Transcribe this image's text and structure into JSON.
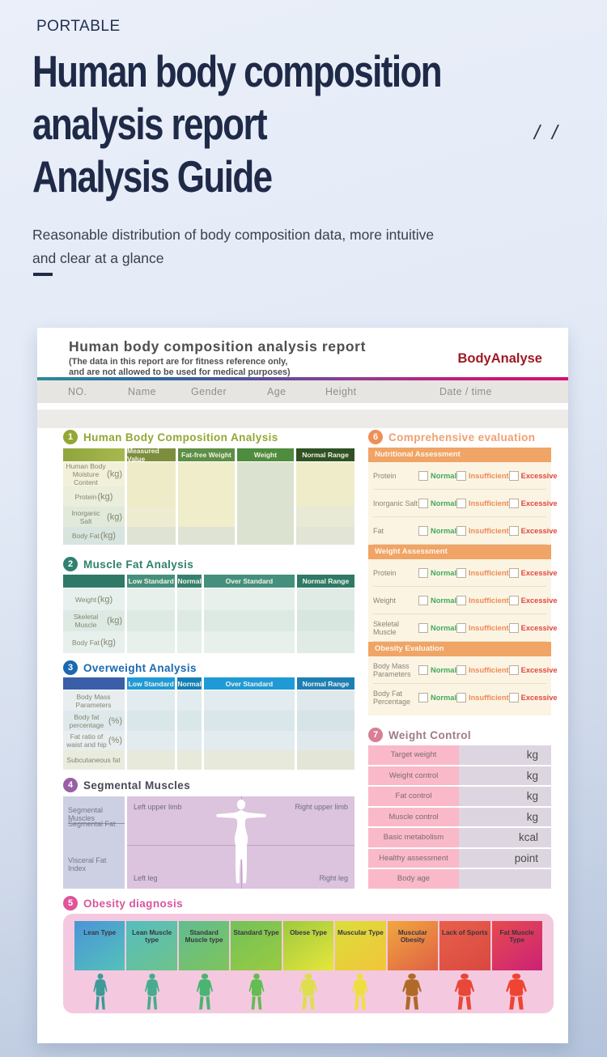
{
  "page": {
    "kicker": "PORTABLE",
    "title_lines": [
      "Human body composition",
      "analysis report",
      "Analysis Guide"
    ],
    "slashes": "/ /",
    "subtitle_line1": "Reasonable distribution of body composition data, more intuitive",
    "subtitle_line2": "and clear at a glance"
  },
  "report": {
    "title": "Human body composition analysis report",
    "disclaimer_line1": "(The data in this report are for fitness reference only,",
    "disclaimer_line2": "and are not allowed to be used for medical purposes)",
    "brand": "BodyAnalyse",
    "info_columns": [
      "NO.",
      "Name",
      "Gender",
      "Age",
      "Height",
      "Date / time"
    ],
    "sections": {
      "composition": {
        "number": "1",
        "title": "Human Body Composition Analysis",
        "columns": [
          "Measured Value",
          "Fat-free Weight",
          "Weight",
          "Normal Range"
        ],
        "rows": [
          {
            "label": "Human Body Moisture Content",
            "unit": "(kg)"
          },
          {
            "label": "Protein",
            "unit": "(kg)"
          },
          {
            "label": "Inorganic Salt",
            "unit": "(kg)"
          },
          {
            "label": "Body Fat",
            "unit": "(kg)"
          }
        ]
      },
      "muscle_fat": {
        "number": "2",
        "title": "Muscle Fat Analysis",
        "columns": [
          "Low Standard",
          "Normal",
          "Over Standard",
          "Normal Range"
        ],
        "rows": [
          {
            "label": "Weight",
            "unit": "(kg)"
          },
          {
            "label": "Skeletal Muscle",
            "unit": "(kg)"
          },
          {
            "label": "Body Fat",
            "unit": "(kg)"
          }
        ]
      },
      "overweight": {
        "number": "3",
        "title": "Overweight Analysis",
        "columns": [
          "Low Standard",
          "Normal",
          "Over Standard",
          "Normal Range"
        ],
        "rows": [
          {
            "label": "Body Mass Parameters",
            "unit": ""
          },
          {
            "label": "Body fat percentage",
            "unit": "(%)"
          },
          {
            "label": "Fat ratio of waist and hip",
            "unit": "(%)"
          },
          {
            "label": "Subcutaneous fat",
            "unit": ""
          }
        ]
      },
      "segmental": {
        "number": "4",
        "title": "Segmental Muscles",
        "legend": [
          "Segmental Muscles",
          "Segmental Fat",
          "Visceral Fat Index"
        ],
        "limbs": {
          "top_left": "Left upper limb",
          "top_right": "Right upper limb",
          "bottom_left": "Left leg",
          "bottom_right": "Right leg"
        }
      },
      "obesity": {
        "number": "5",
        "title": "Obesity diagnosis",
        "types": [
          {
            "label": "Lean Type",
            "color_from": "#4a94d8",
            "color_to": "#54c2ba",
            "body_color": "#3d9a99",
            "body_scale": 1
          },
          {
            "label": "Lean Muscle type",
            "color_from": "#54bec0",
            "color_to": "#6fc28b",
            "body_color": "#47ab8f",
            "body_scale": 1.05
          },
          {
            "label": "Standard Muscle type",
            "color_from": "#60bd90",
            "color_to": "#7fc45c",
            "body_color": "#4bb473",
            "body_scale": 1.18
          },
          {
            "label": "Standard Type",
            "color_from": "#72c15a",
            "color_to": "#9acb40",
            "body_color": "#63bd52",
            "body_scale": 1.1
          },
          {
            "label": "Obese Type",
            "color_from": "#9cca40",
            "color_to": "#e7e63a",
            "body_color": "#dede4e",
            "body_scale": 1.32
          },
          {
            "label": "Muscular Type",
            "color_from": "#dade3a",
            "color_to": "#f2c53a",
            "body_color": "#efdf3e",
            "body_scale": 1.15
          },
          {
            "label": "Muscular Obesity",
            "color_from": "#f0a83e",
            "color_to": "#e06045",
            "body_color": "#b06a28",
            "body_scale": 1.38
          },
          {
            "label": "Lack of Sports",
            "color_from": "#e8604a",
            "color_to": "#d94840",
            "body_color": "#e84838",
            "body_scale": 1.42
          },
          {
            "label": "Fat Muscle Type",
            "color_from": "#e74a4e",
            "color_to": "#cb2277",
            "body_color": "#f04432",
            "body_scale": 1.5
          }
        ]
      },
      "evaluation": {
        "number": "6",
        "title": "Comprehensive evaluation",
        "options": [
          "Normal",
          "Insufficient",
          "Excessive"
        ],
        "groups": [
          {
            "heading": "Nutritional Assessment",
            "rows": [
              "Protein",
              "Inorganic Salt",
              "Fat"
            ]
          },
          {
            "heading": "Weight Assessment",
            "rows": [
              "Protein",
              "Weight",
              "Skeletal Muscle"
            ]
          },
          {
            "heading": "Obesity Evaluation",
            "rows": [
              "Body Mass Parameters",
              "Body Fat Percentage"
            ]
          }
        ]
      },
      "weight_control": {
        "number": "7",
        "title": "Weight Control",
        "rows": [
          {
            "label": "Target weight",
            "unit": "kg"
          },
          {
            "label": "Weight control",
            "unit": "kg"
          },
          {
            "label": "Fat control",
            "unit": "kg"
          },
          {
            "label": "Muscle control",
            "unit": "kg"
          },
          {
            "label": "Basic metabolism",
            "unit": "kcal"
          },
          {
            "label": "Healthy assessment",
            "unit": "point"
          },
          {
            "label": "Body age",
            "unit": ""
          }
        ]
      }
    }
  },
  "colors": {
    "accent_navy": "#1e2a47",
    "brand_red": "#9c1b23",
    "section1": "#94a733",
    "section2": "#2f8070",
    "section3": "#1a68b2",
    "section4": "#9a5fa5",
    "section5": "#e0549a",
    "section6": "#ee8f55",
    "section7": "#d87f95",
    "normal_green": "#3faa5c",
    "insufficient_orange": "#f08a56",
    "excessive_red": "#e04840"
  }
}
